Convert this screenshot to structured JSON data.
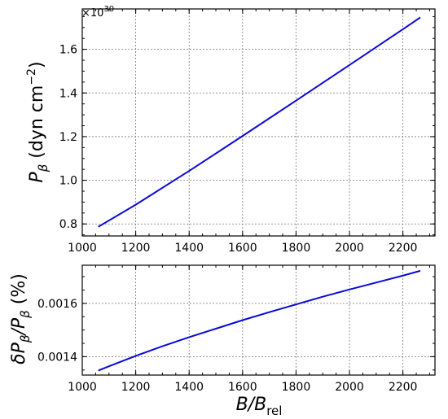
{
  "chart_data": [
    {
      "type": "line",
      "panel": "top",
      "ylabel": "P_β (dyn cm⁻²)",
      "ylabel_parts": {
        "main": "P",
        "sub": "β",
        "rest": " (dyn cm",
        "sup": "−2",
        "end": ")"
      },
      "offset_text": {
        "base": "×10",
        "exp": "30"
      },
      "xlim": [
        1000,
        2320
      ],
      "ylim": [
        0.745,
        1.785
      ],
      "xticks": [
        1000,
        1200,
        1400,
        1600,
        1800,
        2000,
        2200
      ],
      "xtick_labels": [
        "1000",
        "1200",
        "1400",
        "1600",
        "1800",
        "2000",
        "2200"
      ],
      "yticks": [
        0.8,
        1.0,
        1.2,
        1.4,
        1.6
      ],
      "ytick_labels": [
        "0.8",
        "1.0",
        "1.2",
        "1.4",
        "1.6"
      ],
      "x_minor_step": 50,
      "y_minor_step": 0.05,
      "grid": true,
      "color": "#0a0ad6",
      "series": [
        {
          "x": [
            1060,
            1200,
            1400,
            1600,
            1800,
            2000,
            2200,
            2265
          ],
          "y": [
            0.787,
            0.888,
            1.043,
            1.203,
            1.365,
            1.528,
            1.692,
            1.746
          ]
        }
      ]
    },
    {
      "type": "line",
      "panel": "bottom",
      "xlabel": "B/B_rel",
      "xlabel_parts": {
        "main": "B/B",
        "sub": "rel"
      },
      "ylabel": "δP_β/P_β (%)",
      "ylabel_parts": {
        "a": "δP",
        "sub1": "β",
        "b": "/P",
        "sub2": "β",
        "c": " (%)"
      },
      "xlim": [
        1000,
        2320
      ],
      "ylim": [
        0.001331,
        0.001743
      ],
      "xticks": [
        1000,
        1200,
        1400,
        1600,
        1800,
        2000,
        2200
      ],
      "xtick_labels": [
        "1000",
        "1200",
        "1400",
        "1600",
        "1800",
        "2000",
        "2200"
      ],
      "yticks": [
        0.0014,
        0.0016
      ],
      "ytick_labels": [
        "0.0014",
        "0.0016"
      ],
      "x_minor_step": 50,
      "y_minor_step": 5e-05,
      "grid": true,
      "color": "#0a0ad6",
      "series": [
        {
          "x": [
            1060,
            1100,
            1200,
            1300,
            1400,
            1500,
            1600,
            1700,
            1800,
            1900,
            2000,
            2100,
            2200,
            2265
          ],
          "y": [
            0.001348,
            0.001364,
            0.001403,
            0.001439,
            0.001473,
            0.001505,
            0.001537,
            0.001567,
            0.001596,
            0.001625,
            0.001652,
            0.001678,
            0.001704,
            0.001722
          ]
        }
      ]
    }
  ]
}
